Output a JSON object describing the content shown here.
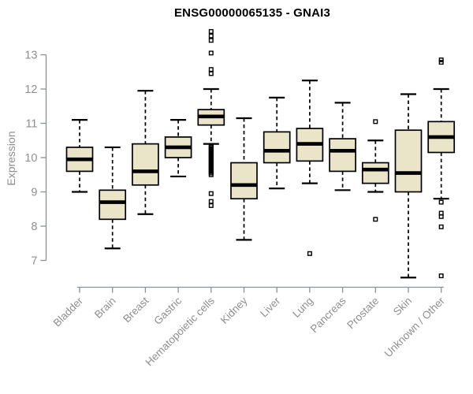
{
  "chart_data": {
    "type": "boxplot",
    "title": "ENSG00000065135 - GNAI3",
    "ylabel": "Expression",
    "xlabel": "",
    "y_ticks": [
      7,
      8,
      9,
      10,
      11,
      12,
      13
    ],
    "y_axis_range": [
      6.3,
      13.9
    ],
    "grid": false,
    "legend": "none",
    "categories": [
      "Bladder",
      "Brain",
      "Breast",
      "Gastric",
      "Hematopoietic cells",
      "Kidney",
      "Liver",
      "Lung",
      "Pancreas",
      "Prostate",
      "Skin",
      "Unknown / Other"
    ],
    "boxes": [
      {
        "category": "Bladder",
        "whisker_low": 9.0,
        "q1": 9.6,
        "median": 9.95,
        "q3": 10.3,
        "whisker_high": 11.1,
        "outliers": []
      },
      {
        "category": "Brain",
        "whisker_low": 7.35,
        "q1": 8.2,
        "median": 8.7,
        "q3": 9.05,
        "whisker_high": 10.3,
        "outliers": []
      },
      {
        "category": "Breast",
        "whisker_low": 8.35,
        "q1": 9.2,
        "median": 9.6,
        "q3": 10.4,
        "whisker_high": 11.95,
        "outliers": []
      },
      {
        "category": "Gastric",
        "whisker_low": 9.45,
        "q1": 10.0,
        "median": 10.3,
        "q3": 10.6,
        "whisker_high": 11.1,
        "outliers": []
      },
      {
        "category": "Hematopoietic cells",
        "whisker_low": 10.4,
        "q1": 10.95,
        "median": 11.2,
        "q3": 11.4,
        "whisker_high": 12.0,
        "outliers": [
          13.68,
          13.55,
          13.42,
          13.05,
          12.57,
          12.45,
          10.35,
          10.31,
          10.27,
          10.23,
          10.19,
          10.15,
          10.11,
          10.07,
          10.03,
          9.99,
          9.95,
          9.91,
          9.87,
          9.83,
          9.79,
          9.75,
          9.71,
          9.67,
          9.63,
          9.59,
          9.55,
          9.5,
          8.95,
          8.72,
          8.6
        ]
      },
      {
        "category": "Kidney",
        "whisker_low": 7.6,
        "q1": 8.8,
        "median": 9.2,
        "q3": 9.85,
        "whisker_high": 11.15,
        "outliers": []
      },
      {
        "category": "Liver",
        "whisker_low": 9.1,
        "q1": 9.85,
        "median": 10.2,
        "q3": 10.75,
        "whisker_high": 11.75,
        "outliers": []
      },
      {
        "category": "Lung",
        "whisker_low": 9.25,
        "q1": 9.9,
        "median": 10.4,
        "q3": 10.85,
        "whisker_high": 12.25,
        "outliers": [
          7.2
        ]
      },
      {
        "category": "Pancreas",
        "whisker_low": 9.05,
        "q1": 9.6,
        "median": 10.2,
        "q3": 10.55,
        "whisker_high": 11.6,
        "outliers": []
      },
      {
        "category": "Prostate",
        "whisker_low": 9.0,
        "q1": 9.25,
        "median": 9.65,
        "q3": 9.85,
        "whisker_high": 10.5,
        "outliers": [
          11.05,
          8.2
        ]
      },
      {
        "category": "Skin",
        "whisker_low": 6.5,
        "q1": 9.0,
        "median": 9.55,
        "q3": 10.8,
        "whisker_high": 11.85,
        "outliers": []
      },
      {
        "category": "Unknown / Other",
        "whisker_low": 8.8,
        "q1": 10.15,
        "median": 10.6,
        "q3": 11.05,
        "whisker_high": 12.0,
        "outliers": [
          12.85,
          12.78,
          8.7,
          8.38,
          8.28,
          7.98,
          6.55
        ]
      }
    ],
    "colors": {
      "box_fill": "#eae4c8",
      "box_stroke": "#000000",
      "median_line": "#000000",
      "whisker": "#000000",
      "outlier": "#000000",
      "axis_line": "#8a9098",
      "tick_text": "#8f8f8f",
      "title_text": "#000000"
    }
  }
}
